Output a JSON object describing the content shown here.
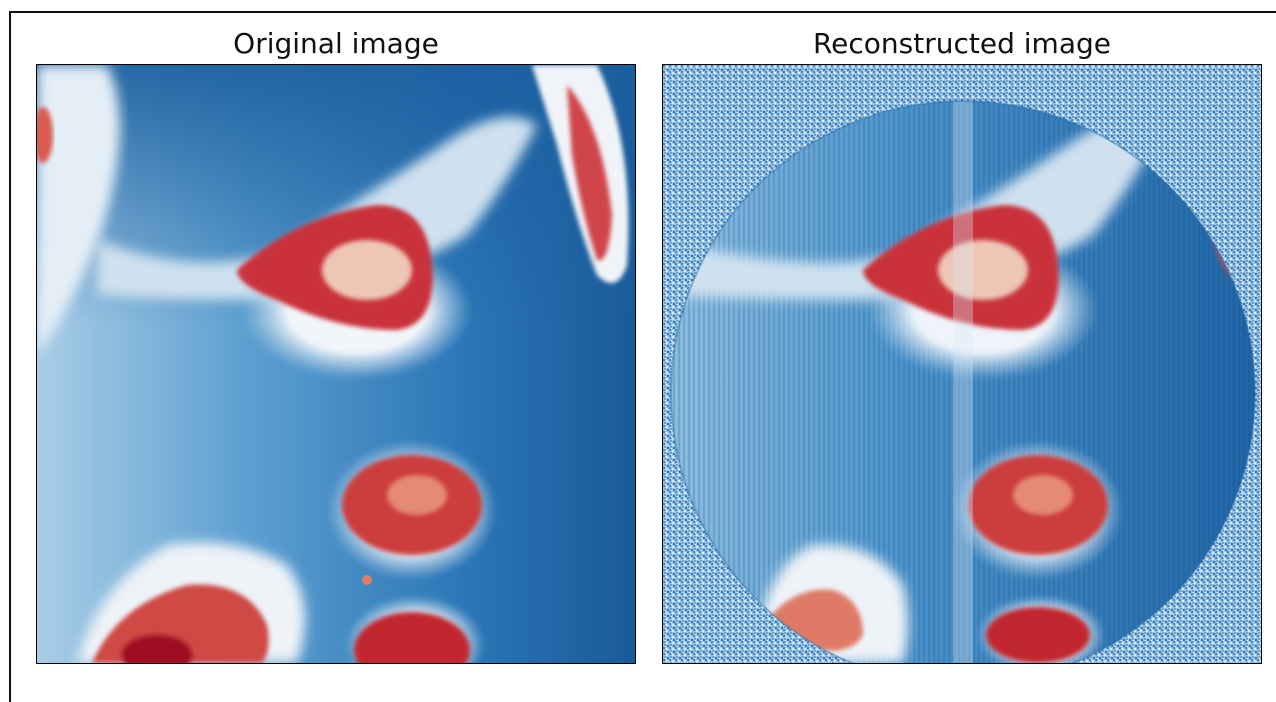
{
  "figure": {
    "panels": [
      {
        "title": "Original image"
      },
      {
        "title": "Reconstructed image"
      }
    ],
    "colormap": {
      "low": "#08306b",
      "mid_low": "#2f7ebc",
      "mid": "#c9e0f0",
      "mid_high": "#f7f7f7",
      "high": "#b2182b"
    }
  }
}
